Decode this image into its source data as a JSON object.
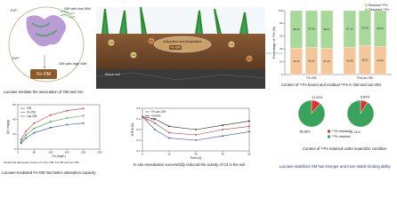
{
  "panels": {
    "mechanism": {
      "fe_label": "Fe²⁺",
      "low_mw": "OM with low MW",
      "high_mw": "OM with high MW",
      "complex": "Fe-OM",
      "caption": "Laccase mediate the association of OM and iron"
    },
    "field": {
      "complex": "Fe-OM",
      "process": "Adsorption and precipitation",
      "soil": "Black soil",
      "cd": "Cd",
      "fe": "Fe"
    },
    "conclusion": "Laccase-stabilized OM has stronger and more stable binding ability"
  },
  "chart_data": [
    {
      "type": "bar",
      "stacked": true,
      "ylabel": "Percentage of ⁵⁵Fe (%)",
      "categories": [
        null,
        "Fe-OM",
        null,
        null,
        "Fe/Lac-OM",
        null
      ],
      "series": [
        {
          "name": "Residual ⁵⁵Fe",
          "color": "#f3c79a",
          "values": [
            41.53,
            42.41,
            41.33,
            42.88,
            45.22,
            44.09
          ]
        },
        {
          "name": "Desorbed ⁵⁵Fe",
          "color": "#a8d89a",
          "values": [
            58.47,
            57.59,
            58.67,
            57.12,
            54.78,
            55.91
          ]
        }
      ],
      "ylim": [
        0,
        100
      ],
      "yticks": [
        0,
        20,
        40,
        60,
        80,
        100
      ],
      "caption": "Content of ⁵⁵Fe bound and residual ⁵⁵Fe in OM and Lac-OM"
    },
    {
      "type": "pie",
      "categories": [
        "⁵⁵Fe released",
        "⁵⁵Fe retained"
      ],
      "colors": [
        "#e0312f",
        "#3aa35b"
      ],
      "pies": [
        {
          "values": [
            11.02,
            88.98
          ],
          "value_labels": [
            "11.02%",
            "88.98%"
          ]
        },
        {
          "values": [
            8.89,
            91.11
          ],
          "value_labels": [
            "8.89%",
            "91.11%"
          ]
        }
      ],
      "caption": "Content of ⁵⁵Fe retained under anaerobic condition"
    },
    {
      "type": "line",
      "xlabel": "Ce (mg/L)",
      "ylabel": "Qe (mg/g)",
      "x": [
        10,
        25,
        50,
        100,
        150,
        200
      ],
      "series": [
        {
          "name": "OM",
          "color": "#2b4fa8",
          "values": [
            8,
            15,
            22,
            29,
            33,
            35
          ]
        },
        {
          "name": "Fe-OM",
          "color": "#3a9a3a",
          "values": [
            10,
            19,
            28,
            37,
            42,
            45
          ]
        },
        {
          "name": "Lac-OM",
          "color": "#d03030",
          "values": [
            13,
            24,
            35,
            46,
            52,
            55
          ]
        }
      ],
      "xlim": [
        0,
        250
      ],
      "xticks": [
        0,
        50,
        100,
        150,
        200,
        250
      ],
      "ylim": [
        0,
        60
      ],
      "yticks": [
        0,
        20,
        40,
        60
      ],
      "note": "Isothermal adsorption curves of Cd by OM, Fe-OM and Lac-OM",
      "caption": "Laccase-mediated Fe-OM has better adsorption capacity"
    },
    {
      "type": "line",
      "xlabel": "Time (d)",
      "ylabel": "DTPA-Cd",
      "x": [
        0,
        7,
        15,
        30,
        45,
        60
      ],
      "series": [
        {
          "name": "Fe-Lac-OM",
          "color": "#2b4fa8",
          "values": [
            0.42,
            0.3,
            0.22,
            0.2,
            0.24,
            0.28
          ]
        },
        {
          "name": "Control",
          "color": "#222222",
          "values": [
            0.42,
            0.4,
            0.33,
            0.3,
            0.34,
            0.38
          ]
        },
        {
          "name": "Fe",
          "color": "#d03030",
          "values": [
            0.42,
            0.36,
            0.27,
            0.25,
            0.3,
            0.33
          ]
        }
      ],
      "xlim": [
        0,
        60
      ],
      "xticks": [
        0,
        15,
        30,
        45,
        60
      ],
      "ylim": [
        0.1,
        0.5
      ],
      "yticks": [
        0.1,
        0.2,
        0.3,
        0.4,
        0.5
      ],
      "caption": "In situ remediation successfully reduced the activity of Cd in the soil"
    }
  ]
}
